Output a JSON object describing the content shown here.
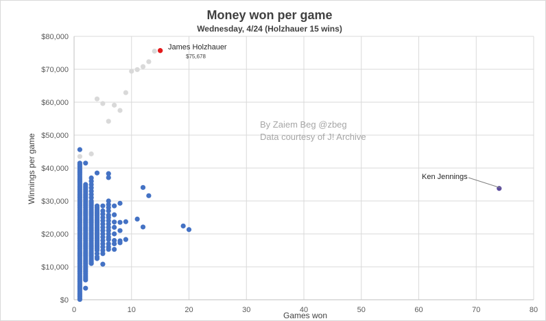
{
  "chart_data": {
    "type": "scatter",
    "title": "Money won per game",
    "subtitle": "Wednesday, 4/24 (Holzhauer 15 wins)",
    "xlabel": "Games won",
    "ylabel": "Winnings per game",
    "xlim": [
      0,
      80
    ],
    "ylim": [
      0,
      80000
    ],
    "x_ticks": [
      "0",
      "10",
      "20",
      "30",
      "40",
      "50",
      "60",
      "70",
      "80"
    ],
    "y_ticks": [
      "$0",
      "$10,000",
      "$20,000",
      "$30,000",
      "$40,000",
      "$50,000",
      "$60,000",
      "$70,000",
      "$80,000"
    ],
    "grid": true,
    "colors": {
      "main": "#4472c4",
      "highlight": "#e31a1c",
      "grey": "#d9d9d9",
      "ken": "#5b4a9e"
    },
    "watermark": [
      "By Zaiem Beg @zbeg",
      "Data courtesy of J! Archive"
    ],
    "annotations": {
      "holzhauer_name": "James Holzhauer",
      "holzhauer_value": "$75,678",
      "jennings_name": "Ken Jennings"
    },
    "series": [
      {
        "color": "#d9d9d9",
        "points": [
          [
            1,
            43500
          ],
          [
            3,
            44300
          ],
          [
            4,
            61000
          ],
          [
            5,
            59600
          ],
          [
            6,
            54200
          ],
          [
            7,
            59100
          ],
          [
            8,
            57500
          ],
          [
            9,
            62900
          ],
          [
            10,
            69400
          ],
          [
            11,
            69900
          ],
          [
            12,
            70800
          ],
          [
            13,
            72300
          ],
          [
            14,
            75500
          ]
        ]
      },
      {
        "color": "#e31a1c",
        "points": [
          [
            15,
            75678
          ]
        ]
      },
      {
        "color": "#5b4a9e",
        "points": [
          [
            74,
            33800
          ]
        ]
      },
      {
        "color": "#4472c4",
        "points": [
          [
            1,
            45600
          ],
          [
            1,
            41500
          ],
          [
            1,
            41000
          ],
          [
            1,
            40500
          ],
          [
            1,
            40000
          ],
          [
            1,
            39500
          ],
          [
            1,
            39000
          ],
          [
            1,
            38500
          ],
          [
            1,
            38000
          ],
          [
            1,
            37500
          ],
          [
            1,
            37000
          ],
          [
            1,
            36500
          ],
          [
            1,
            36000
          ],
          [
            1,
            35500
          ],
          [
            1,
            35000
          ],
          [
            1,
            34500
          ],
          [
            1,
            34000
          ],
          [
            1,
            33500
          ],
          [
            1,
            33000
          ],
          [
            1,
            32500
          ],
          [
            1,
            32000
          ],
          [
            1,
            31500
          ],
          [
            1,
            31000
          ],
          [
            1,
            30500
          ],
          [
            1,
            30000
          ],
          [
            1,
            29500
          ],
          [
            1,
            29000
          ],
          [
            1,
            28500
          ],
          [
            1,
            28000
          ],
          [
            1,
            27500
          ],
          [
            1,
            27000
          ],
          [
            1,
            26500
          ],
          [
            1,
            26000
          ],
          [
            1,
            25500
          ],
          [
            1,
            25000
          ],
          [
            1,
            24500
          ],
          [
            1,
            24000
          ],
          [
            1,
            23500
          ],
          [
            1,
            23000
          ],
          [
            1,
            22500
          ],
          [
            1,
            22000
          ],
          [
            1,
            21500
          ],
          [
            1,
            21000
          ],
          [
            1,
            20500
          ],
          [
            1,
            20000
          ],
          [
            1,
            19500
          ],
          [
            1,
            19000
          ],
          [
            1,
            18500
          ],
          [
            1,
            18000
          ],
          [
            1,
            17500
          ],
          [
            1,
            17000
          ],
          [
            1,
            16500
          ],
          [
            1,
            16000
          ],
          [
            1,
            15500
          ],
          [
            1,
            15000
          ],
          [
            1,
            14500
          ],
          [
            1,
            14000
          ],
          [
            1,
            13500
          ],
          [
            1,
            13000
          ],
          [
            1,
            12500
          ],
          [
            1,
            12000
          ],
          [
            1,
            11500
          ],
          [
            1,
            11000
          ],
          [
            1,
            10500
          ],
          [
            1,
            10000
          ],
          [
            1,
            9500
          ],
          [
            1,
            9000
          ],
          [
            1,
            8500
          ],
          [
            1,
            8000
          ],
          [
            1,
            7500
          ],
          [
            1,
            7000
          ],
          [
            1,
            6500
          ],
          [
            1,
            6000
          ],
          [
            1,
            5500
          ],
          [
            1,
            5000
          ],
          [
            1,
            4500
          ],
          [
            1,
            4000
          ],
          [
            1,
            3500
          ],
          [
            1,
            3000
          ],
          [
            1,
            2500
          ],
          [
            1,
            2000
          ],
          [
            1,
            1500
          ],
          [
            1,
            1000
          ],
          [
            1,
            500
          ],
          [
            1,
            100
          ],
          [
            2,
            41500
          ],
          [
            2,
            35000
          ],
          [
            2,
            34500
          ],
          [
            2,
            34000
          ],
          [
            2,
            33500
          ],
          [
            2,
            33000
          ],
          [
            2,
            32500
          ],
          [
            2,
            32000
          ],
          [
            2,
            31500
          ],
          [
            2,
            31000
          ],
          [
            2,
            30500
          ],
          [
            2,
            30000
          ],
          [
            2,
            29500
          ],
          [
            2,
            29000
          ],
          [
            2,
            28500
          ],
          [
            2,
            28000
          ],
          [
            2,
            27500
          ],
          [
            2,
            27000
          ],
          [
            2,
            26500
          ],
          [
            2,
            26000
          ],
          [
            2,
            25500
          ],
          [
            2,
            25000
          ],
          [
            2,
            24500
          ],
          [
            2,
            24000
          ],
          [
            2,
            23500
          ],
          [
            2,
            23000
          ],
          [
            2,
            22500
          ],
          [
            2,
            22000
          ],
          [
            2,
            21500
          ],
          [
            2,
            21000
          ],
          [
            2,
            20500
          ],
          [
            2,
            20000
          ],
          [
            2,
            19500
          ],
          [
            2,
            19000
          ],
          [
            2,
            18500
          ],
          [
            2,
            18000
          ],
          [
            2,
            17500
          ],
          [
            2,
            17000
          ],
          [
            2,
            16500
          ],
          [
            2,
            16000
          ],
          [
            2,
            15500
          ],
          [
            2,
            15000
          ],
          [
            2,
            14500
          ],
          [
            2,
            14000
          ],
          [
            2,
            13500
          ],
          [
            2,
            13000
          ],
          [
            2,
            12500
          ],
          [
            2,
            12000
          ],
          [
            2,
            11500
          ],
          [
            2,
            11000
          ],
          [
            2,
            10500
          ],
          [
            2,
            10000
          ],
          [
            2,
            9500
          ],
          [
            2,
            9000
          ],
          [
            2,
            8500
          ],
          [
            2,
            8000
          ],
          [
            2,
            7500
          ],
          [
            2,
            7000
          ],
          [
            2,
            6500
          ],
          [
            2,
            6000
          ],
          [
            2,
            3500
          ],
          [
            3,
            37000
          ],
          [
            3,
            36000
          ],
          [
            3,
            35000
          ],
          [
            3,
            34000
          ],
          [
            3,
            33000
          ],
          [
            3,
            32000
          ],
          [
            3,
            31000
          ],
          [
            3,
            30000
          ],
          [
            3,
            29500
          ],
          [
            3,
            29000
          ],
          [
            3,
            28500
          ],
          [
            3,
            28000
          ],
          [
            3,
            27500
          ],
          [
            3,
            27000
          ],
          [
            3,
            26500
          ],
          [
            3,
            26000
          ],
          [
            3,
            25500
          ],
          [
            3,
            25000
          ],
          [
            3,
            24500
          ],
          [
            3,
            24000
          ],
          [
            3,
            23500
          ],
          [
            3,
            23000
          ],
          [
            3,
            22500
          ],
          [
            3,
            22000
          ],
          [
            3,
            21500
          ],
          [
            3,
            21000
          ],
          [
            3,
            20500
          ],
          [
            3,
            20000
          ],
          [
            3,
            19500
          ],
          [
            3,
            19000
          ],
          [
            3,
            18500
          ],
          [
            3,
            18000
          ],
          [
            3,
            17500
          ],
          [
            3,
            17000
          ],
          [
            3,
            16500
          ],
          [
            3,
            16000
          ],
          [
            3,
            15500
          ],
          [
            3,
            15000
          ],
          [
            3,
            14500
          ],
          [
            3,
            14000
          ],
          [
            3,
            13500
          ],
          [
            3,
            13000
          ],
          [
            3,
            12500
          ],
          [
            3,
            12000
          ],
          [
            3,
            11500
          ],
          [
            3,
            11000
          ],
          [
            4,
            38500
          ],
          [
            4,
            28500
          ],
          [
            4,
            28000
          ],
          [
            4,
            27500
          ],
          [
            4,
            27000
          ],
          [
            4,
            26500
          ],
          [
            4,
            26000
          ],
          [
            4,
            25500
          ],
          [
            4,
            25000
          ],
          [
            4,
            24500
          ],
          [
            4,
            24000
          ],
          [
            4,
            23500
          ],
          [
            4,
            23000
          ],
          [
            4,
            22500
          ],
          [
            4,
            22000
          ],
          [
            4,
            21500
          ],
          [
            4,
            21000
          ],
          [
            4,
            20500
          ],
          [
            4,
            20000
          ],
          [
            4,
            19500
          ],
          [
            4,
            19000
          ],
          [
            4,
            18500
          ],
          [
            4,
            18000
          ],
          [
            4,
            17500
          ],
          [
            4,
            17000
          ],
          [
            4,
            16500
          ],
          [
            4,
            16000
          ],
          [
            4,
            15500
          ],
          [
            4,
            15000
          ],
          [
            4,
            14000
          ],
          [
            4,
            13000
          ],
          [
            4,
            12500
          ],
          [
            5,
            28500
          ],
          [
            5,
            27000
          ],
          [
            5,
            26000
          ],
          [
            5,
            25000
          ],
          [
            5,
            24000
          ],
          [
            5,
            23000
          ],
          [
            5,
            22000
          ],
          [
            5,
            21000
          ],
          [
            5,
            20000
          ],
          [
            5,
            19000
          ],
          [
            5,
            18000
          ],
          [
            5,
            17000
          ],
          [
            5,
            16000
          ],
          [
            5,
            15000
          ],
          [
            5,
            14000
          ],
          [
            5,
            10800
          ],
          [
            6,
            38300
          ],
          [
            6,
            37100
          ],
          [
            6,
            30000
          ],
          [
            6,
            28900
          ],
          [
            6,
            28000
          ],
          [
            6,
            27000
          ],
          [
            6,
            25700
          ],
          [
            6,
            25000
          ],
          [
            6,
            24000
          ],
          [
            6,
            23000
          ],
          [
            6,
            22000
          ],
          [
            6,
            21000
          ],
          [
            6,
            20000
          ],
          [
            6,
            19000
          ],
          [
            6,
            18300
          ],
          [
            6,
            17000
          ],
          [
            6,
            16000
          ],
          [
            6,
            15300
          ],
          [
            7,
            28500
          ],
          [
            7,
            25800
          ],
          [
            7,
            23600
          ],
          [
            7,
            22000
          ],
          [
            7,
            20000
          ],
          [
            7,
            18000
          ],
          [
            7,
            17000
          ],
          [
            7,
            15300
          ],
          [
            8,
            29300
          ],
          [
            8,
            17900
          ],
          [
            8,
            17300
          ],
          [
            8,
            23500
          ],
          [
            8,
            21000
          ],
          [
            9,
            23700
          ],
          [
            9,
            18300
          ],
          [
            11,
            24500
          ],
          [
            12,
            34100
          ],
          [
            12,
            22100
          ],
          [
            13,
            31600
          ],
          [
            19,
            22400
          ],
          [
            20,
            21300
          ]
        ]
      }
    ]
  }
}
